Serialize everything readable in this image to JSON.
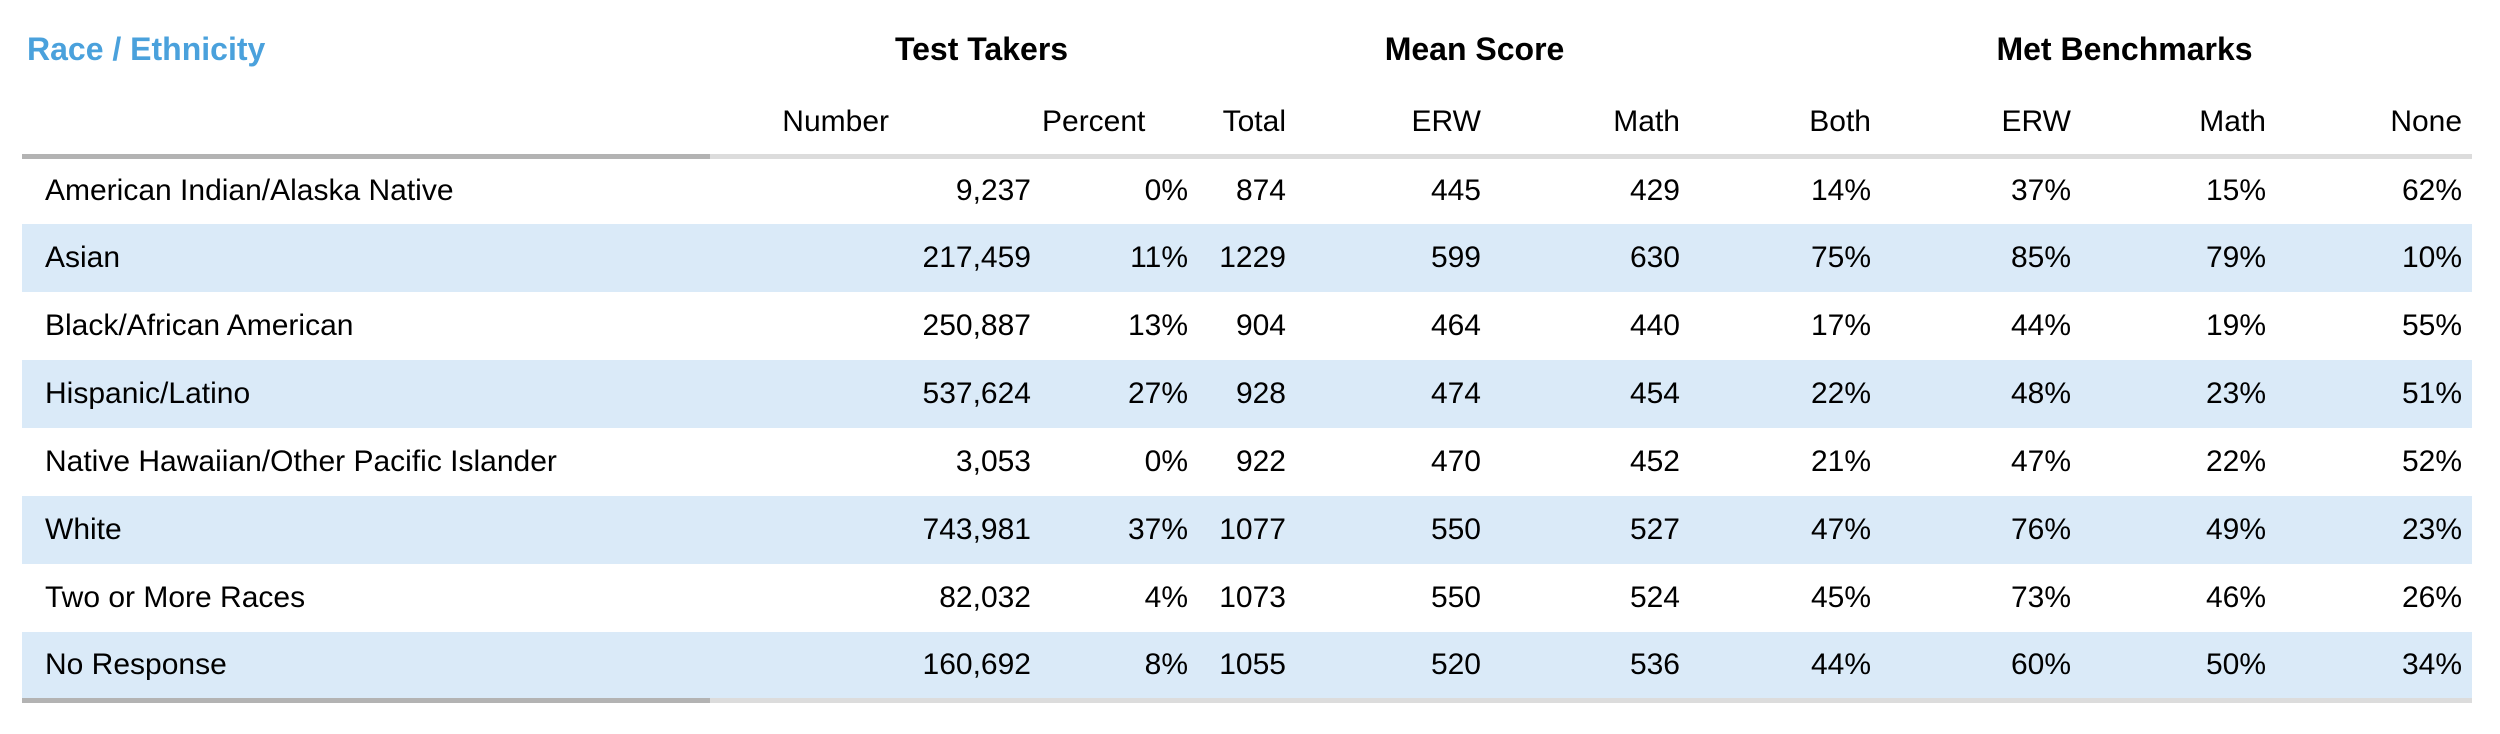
{
  "table": {
    "title": "Race / Ethnicity",
    "groups": {
      "test_takers": "Test Takers",
      "mean_score": "Mean Score",
      "met_benchmarks": "Met Benchmarks"
    },
    "columns": [
      "Number",
      "Percent",
      "Total",
      "ERW",
      "Math",
      "Both",
      "ERW",
      "Math",
      "None"
    ],
    "rows": [
      {
        "label": "American Indian/Alaska Native",
        "values": [
          "9,237",
          "0%",
          "874",
          "445",
          "429",
          "14%",
          "37%",
          "15%",
          "62%"
        ]
      },
      {
        "label": "Asian",
        "values": [
          "217,459",
          "11%",
          "1229",
          "599",
          "630",
          "75%",
          "85%",
          "79%",
          "10%"
        ]
      },
      {
        "label": "Black/African American",
        "values": [
          "250,887",
          "13%",
          "904",
          "464",
          "440",
          "17%",
          "44%",
          "19%",
          "55%"
        ]
      },
      {
        "label": "Hispanic/Latino",
        "values": [
          "537,624",
          "27%",
          "928",
          "474",
          "454",
          "22%",
          "48%",
          "23%",
          "51%"
        ]
      },
      {
        "label": "Native Hawaiian/Other Pacific Islander",
        "values": [
          "3,053",
          "0%",
          "922",
          "470",
          "452",
          "21%",
          "47%",
          "22%",
          "52%"
        ]
      },
      {
        "label": "White",
        "values": [
          "743,981",
          "37%",
          "1077",
          "550",
          "527",
          "47%",
          "76%",
          "49%",
          "23%"
        ]
      },
      {
        "label": "Two or More Races",
        "values": [
          "82,032",
          "4%",
          "1073",
          "550",
          "524",
          "45%",
          "73%",
          "46%",
          "26%"
        ]
      },
      {
        "label": "No Response",
        "values": [
          "160,692",
          "8%",
          "1055",
          "520",
          "536",
          "44%",
          "60%",
          "50%",
          "34%"
        ]
      }
    ],
    "colors": {
      "accent": "#4AA1DC",
      "zebra_row": "#DAEAF8",
      "border_dark": "#B3B3B3",
      "border_light": "#DCDCDC",
      "text": "#000000",
      "background": "#FFFFFF"
    }
  }
}
